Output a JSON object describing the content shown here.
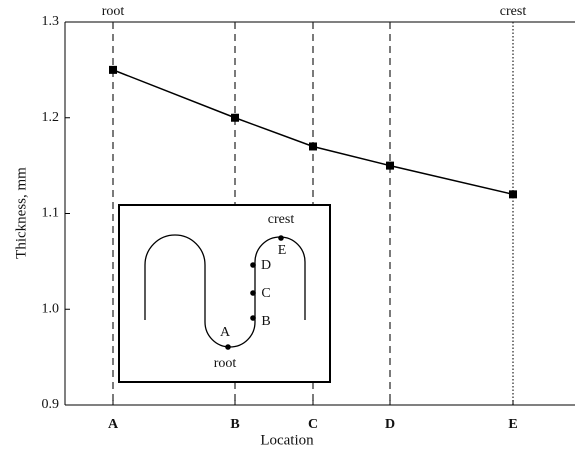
{
  "chart_data": {
    "type": "line",
    "ylabel": "Thickness, mm",
    "xlabel": "Location",
    "categories": [
      "A",
      "B",
      "C",
      "D",
      "E"
    ],
    "values": [
      1.25,
      1.2,
      1.17,
      1.15,
      1.12
    ],
    "color": "#000000",
    "ylim": [
      0.9,
      1.3
    ],
    "yticks": [
      0.9,
      {
        "value": 1.0,
        "label": "1.0"
      },
      1.1,
      1.2,
      1.3
    ],
    "top_labels": [
      "root",
      null,
      null,
      null,
      "crest"
    ],
    "inset": {
      "crest": "crest",
      "E": "E",
      "D": "D",
      "C": "C",
      "B": "B",
      "A": "A",
      "root": "root"
    }
  }
}
